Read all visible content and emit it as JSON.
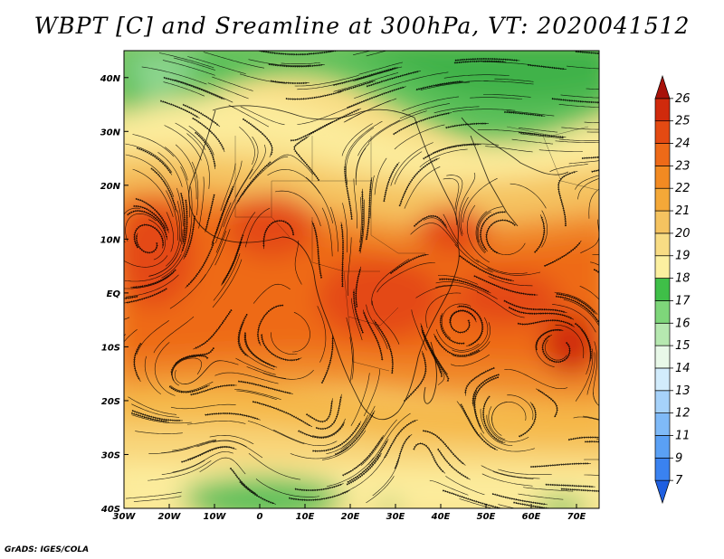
{
  "title": "WBPT [C] and Sreamline at 300hPa, VT: 2020041512",
  "credit": "GrADS: IGES/COLA",
  "map": {
    "lon_range": [
      -30,
      75
    ],
    "lat_range": [
      -40,
      45
    ],
    "lon_ticks": [
      {
        "value": -30,
        "label": "30W"
      },
      {
        "value": -20,
        "label": "20W"
      },
      {
        "value": -10,
        "label": "10W"
      },
      {
        "value": 0,
        "label": "0"
      },
      {
        "value": 10,
        "label": "10E"
      },
      {
        "value": 20,
        "label": "20E"
      },
      {
        "value": 30,
        "label": "30E"
      },
      {
        "value": 40,
        "label": "40E"
      },
      {
        "value": 50,
        "label": "50E"
      },
      {
        "value": 60,
        "label": "60E"
      },
      {
        "value": 70,
        "label": "70E"
      }
    ],
    "lat_ticks": [
      {
        "value": 40,
        "label": "40N"
      },
      {
        "value": 30,
        "label": "30N"
      },
      {
        "value": 20,
        "label": "20N"
      },
      {
        "value": 10,
        "label": "10N"
      },
      {
        "value": 0,
        "label": "EQ"
      },
      {
        "value": -10,
        "label": "10S"
      },
      {
        "value": -20,
        "label": "20S"
      },
      {
        "value": -30,
        "label": "30S"
      },
      {
        "value": -40,
        "label": "40S"
      }
    ]
  },
  "colorbar": {
    "levels": [
      "7",
      "9",
      "11",
      "12",
      "13",
      "14",
      "15",
      "16",
      "17",
      "18",
      "19",
      "20",
      "21",
      "22",
      "23",
      "24",
      "25",
      "26"
    ],
    "colors": [
      "#1f5fe0",
      "#3a82f0",
      "#5aa0f5",
      "#7fbaf8",
      "#a6d2fa",
      "#d2ecfc",
      "#e8f8e8",
      "#b6e8b0",
      "#7ed67a",
      "#3fbf48",
      "#fcf0a0",
      "#f8dc84",
      "#f5c360",
      "#f4a838",
      "#f28a22",
      "#ee6a18",
      "#e44a12",
      "#d02a0c",
      "#a8120a"
    ]
  }
}
